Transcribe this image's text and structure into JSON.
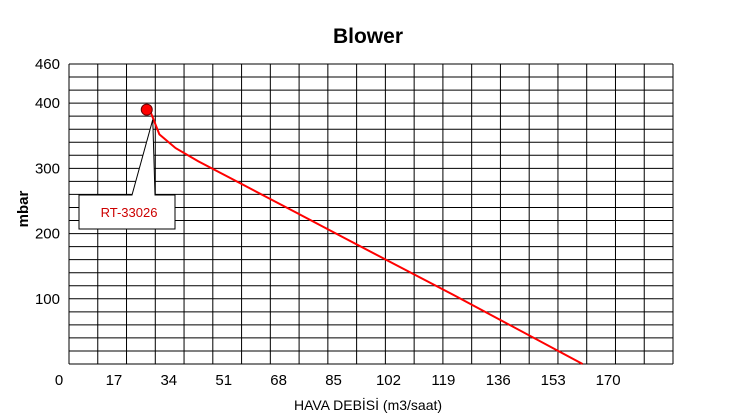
{
  "chart_data": {
    "type": "line",
    "title": "Blower",
    "xlabel": "HAVA DEBİSİ (m3/saat)",
    "ylabel": "mbar",
    "xlim": [
      0,
      187
    ],
    "ylim": [
      0,
      460
    ],
    "x_ticks": [
      "0",
      "17",
      "34",
      "51",
      "68",
      "85",
      "102",
      "119",
      "136",
      "153",
      "170"
    ],
    "y_ticks": [
      "100",
      "200",
      "300",
      "400",
      "460"
    ],
    "grid": true,
    "series": [
      {
        "name": "RT-33026",
        "color": "#ff0000",
        "x": [
          25,
          28,
          33,
          40,
          50,
          60,
          70,
          85,
          100,
          119,
          136,
          153,
          162
        ],
        "y": [
          390,
          352,
          331,
          311,
          285,
          259,
          233,
          194,
          155,
          106,
          61,
          16,
          -8
        ]
      }
    ],
    "annotations": [
      {
        "text": "RT-33026",
        "x": 25,
        "y": 390
      }
    ]
  }
}
